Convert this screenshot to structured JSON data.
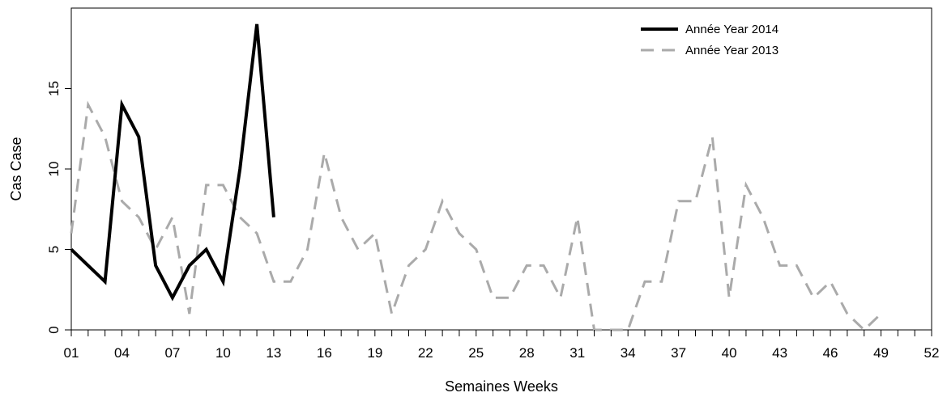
{
  "chart_data": {
    "type": "line",
    "title": "",
    "xlabel": "Semaines Weeks",
    "ylabel": "Cas Case",
    "xlim": [
      1,
      52
    ],
    "ylim": [
      0,
      20
    ],
    "x_tick_labels": [
      "01",
      "04",
      "07",
      "10",
      "13",
      "16",
      "19",
      "22",
      "25",
      "28",
      "31",
      "34",
      "37",
      "40",
      "43",
      "46",
      "49",
      "52"
    ],
    "x_tick_values": [
      1,
      4,
      7,
      10,
      13,
      16,
      19,
      22,
      25,
      28,
      31,
      34,
      37,
      40,
      43,
      46,
      49,
      52
    ],
    "y_tick_labels": [
      "0",
      "5",
      "10",
      "15"
    ],
    "y_tick_values": [
      0,
      5,
      10,
      15
    ],
    "grid": false,
    "legend_position": "top-right",
    "series": [
      {
        "name": "Année Year 2014",
        "color": "#000000",
        "style": "solid",
        "x": [
          1,
          2,
          3,
          4,
          5,
          6,
          7,
          8,
          9,
          10,
          11,
          12,
          13
        ],
        "y": [
          5,
          4,
          3,
          14,
          12,
          4,
          2,
          4,
          5,
          3,
          10,
          19,
          7
        ]
      },
      {
        "name": "Année Year 2013",
        "color": "#aaaaaa",
        "style": "dashed",
        "x": [
          1,
          2,
          3,
          4,
          5,
          6,
          7,
          8,
          9,
          10,
          11,
          12,
          13,
          14,
          15,
          16,
          17,
          18,
          19,
          20,
          21,
          22,
          23,
          24,
          25,
          26,
          27,
          28,
          29,
          30,
          31,
          32,
          33,
          34,
          35,
          36,
          37,
          38,
          39,
          40,
          41,
          42,
          43,
          44,
          45,
          46,
          47,
          48,
          49
        ],
        "y": [
          6,
          14,
          12,
          8,
          7,
          5,
          7,
          1,
          9,
          9,
          7,
          6,
          3,
          3,
          5,
          11,
          7,
          5,
          6,
          1,
          4,
          5,
          8,
          6,
          5,
          2,
          2,
          4,
          4,
          2,
          7,
          0,
          0,
          0,
          3,
          3,
          8,
          8,
          12,
          2,
          9,
          7,
          4,
          4,
          2,
          3,
          1,
          0,
          1
        ]
      }
    ]
  }
}
